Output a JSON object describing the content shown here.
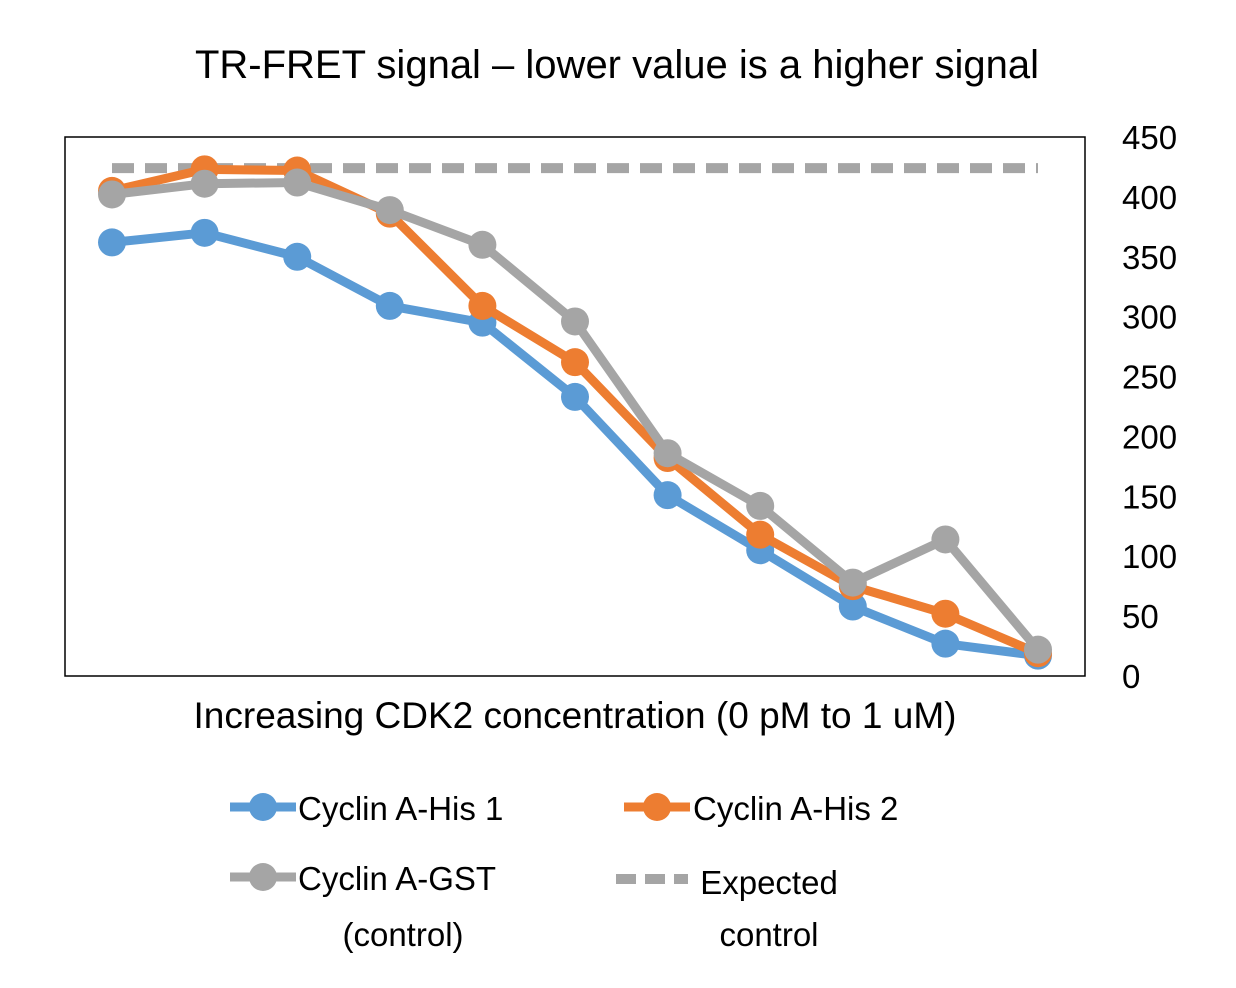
{
  "chart_data": {
    "type": "line",
    "title": "TR-FRET signal – lower value is a higher signal",
    "xlabel": "Increasing CDK2 concentration (0 pM to 1 uM)",
    "ylabel": "",
    "ylim": [
      0,
      450
    ],
    "yticks": [
      "0",
      "50",
      "100",
      "150",
      "200",
      "250",
      "300",
      "350",
      "400",
      "450"
    ],
    "y_axis_side": "right",
    "grid": false,
    "legend_position": "bottom",
    "x": [
      1,
      2,
      3,
      4,
      5,
      6,
      7,
      8,
      9,
      10,
      11
    ],
    "series": [
      {
        "name": "Cyclin A-His 1",
        "color": "#5B9BD5",
        "style": "line-markers",
        "values": [
          362,
          370,
          350,
          309,
          295,
          233,
          151,
          105,
          58,
          27,
          17
        ]
      },
      {
        "name": "Cyclin A-His 2",
        "color": "#ED7D31",
        "style": "line-markers",
        "values": [
          405,
          423,
          422,
          386,
          309,
          262,
          182,
          118,
          75,
          52,
          19
        ]
      },
      {
        "name": "Cyclin A-GST (control)",
        "color": "#A5A5A5",
        "style": "line-markers",
        "values": [
          402,
          411,
          412,
          389,
          360,
          296,
          186,
          142,
          78,
          114,
          22
        ]
      },
      {
        "name": "Expected control",
        "color": "#A5A5A5",
        "style": "dashed",
        "values": [
          424,
          424,
          424,
          424,
          424,
          424,
          424,
          424,
          424,
          424,
          424
        ]
      }
    ]
  },
  "legend": {
    "item1_label": "Cyclin A-His 1",
    "item2_label": "Cyclin A-His 2",
    "item3_line1": "Cyclin A-GST",
    "item3_line2": "(control)",
    "item4_line1": "Expected",
    "item4_line2": "control"
  }
}
